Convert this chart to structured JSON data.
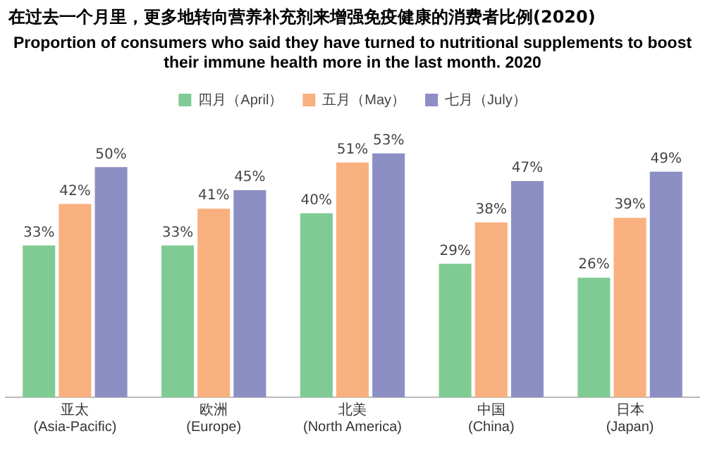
{
  "chart_data": {
    "type": "bar",
    "title": "在过去一个月里，更多地转向营养补充剂来增强免疫健康的消费者比例(2020)",
    "subtitle": "Proportion of consumers who said they have turned to nutritional supplements to boost their immune health more in the last month. 2020",
    "categories": [
      "亚太\n(Asia-Pacific)",
      "欧洲\n(Europe)",
      "北美\n(North America)",
      "中国\n(China)",
      "日本\n(Japan)"
    ],
    "series": [
      {
        "name": "四月（April）",
        "color": "#80cb93",
        "values": [
          33,
          33,
          40,
          29,
          26
        ],
        "value_labels": [
          "33%",
          "33%",
          "40%",
          "29%",
          "26%"
        ]
      },
      {
        "name": "五月（May）",
        "color": "#f9b07f",
        "values": [
          42,
          41,
          51,
          38,
          39
        ],
        "value_labels": [
          "42%",
          "41%",
          "51%",
          "38%",
          "39%"
        ]
      },
      {
        "name": "七月（July）",
        "color": "#8c8fc3",
        "values": [
          50,
          45,
          53,
          47,
          49
        ],
        "value_labels": [
          "50%",
          "45%",
          "53%",
          "47%",
          "49%"
        ]
      }
    ],
    "legend": "top",
    "grid": false
  }
}
